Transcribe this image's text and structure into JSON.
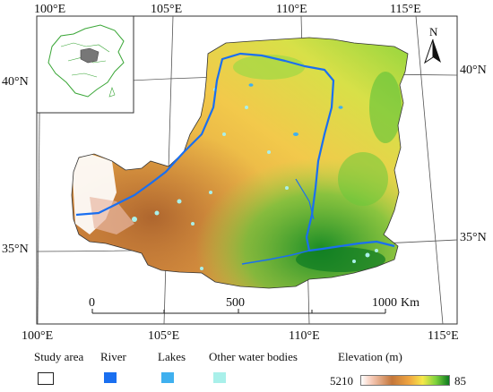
{
  "map": {
    "lon_labels_top": [
      "100°E",
      "105°E",
      "110°E",
      "115°E"
    ],
    "lon_labels_bottom": [
      "100°E",
      "105°E",
      "110°E",
      "115°E"
    ],
    "lat_labels_left": [
      "40°N",
      "35°N"
    ],
    "lat_labels_right": [
      "40°N",
      "35°N"
    ],
    "north_label": "N",
    "scale": {
      "ticks": [
        "0",
        "500",
        "1000"
      ],
      "unit": "Km"
    }
  },
  "legend": {
    "study_area": "Study area",
    "river": "River",
    "lakes": "Lakes",
    "other_water": "Other water bodies",
    "elevation_title": "Elevation (m)",
    "elevation_max": "5210",
    "elevation_min": "85",
    "colors": {
      "river": "#1a6ff0",
      "lakes": "#3fb0ef",
      "other_water": "#a9f0ea"
    }
  }
}
